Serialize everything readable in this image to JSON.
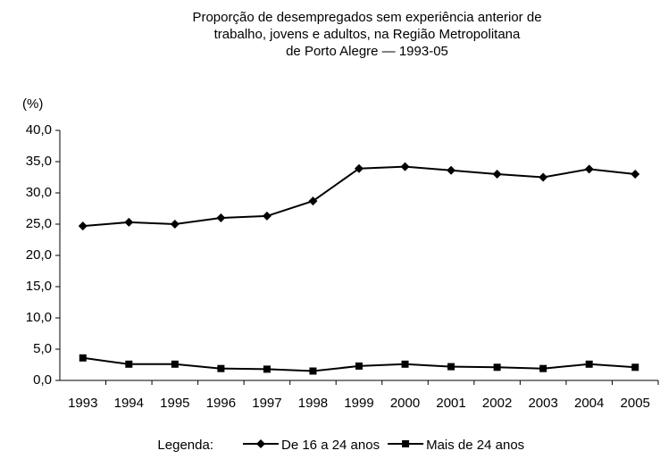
{
  "chart_data": {
    "type": "line",
    "title": [
      "Proporção de desempregados sem experiência anterior de",
      "trabalho, jovens e adultos,  na Região Metropolitana",
      "de Porto Alegre — 1993-05"
    ],
    "ylabel": "(%)",
    "legend_title": "Legenda:",
    "categories": [
      "1993",
      "1994",
      "1995",
      "1996",
      "1997",
      "1998",
      "1999",
      "2000",
      "2001",
      "2002",
      "2003",
      "2004",
      "2005"
    ],
    "series": [
      {
        "name": "De 16 a 24 anos",
        "color": "#000000",
        "marker": "diamond",
        "values": [
          24.7,
          25.3,
          25.0,
          26.0,
          26.3,
          28.7,
          33.9,
          34.2,
          33.6,
          33.0,
          32.5,
          33.8,
          33.0
        ]
      },
      {
        "name": "Mais de 24 anos",
        "color": "#000000",
        "marker": "square",
        "values": [
          3.6,
          2.6,
          2.6,
          1.9,
          1.8,
          1.5,
          2.3,
          2.6,
          2.2,
          2.1,
          1.9,
          2.6,
          2.1
        ]
      }
    ],
    "ylim": [
      0,
      40
    ],
    "yticks": [
      {
        "value": 0,
        "label": "0,0"
      },
      {
        "value": 5,
        "label": "5,0"
      },
      {
        "value": 10,
        "label": "10,0"
      },
      {
        "value": 15,
        "label": "15,0"
      },
      {
        "value": 20,
        "label": "20,0"
      },
      {
        "value": 25,
        "label": "25,0"
      },
      {
        "value": 30,
        "label": "30,0"
      },
      {
        "value": 35,
        "label": "35,0"
      },
      {
        "value": 40,
        "label": "40,0"
      }
    ],
    "grid": false
  }
}
